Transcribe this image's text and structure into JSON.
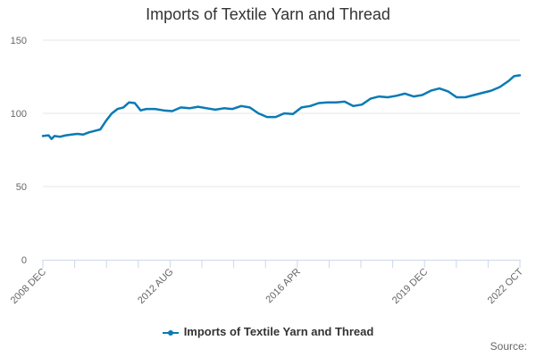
{
  "chart_data": {
    "type": "line",
    "title": "Imports of Textile Yarn and Thread",
    "ylim": [
      0,
      150
    ],
    "yticks": [
      "0",
      "50",
      "100",
      "150"
    ],
    "xtick_labels": [
      "2008 DEC",
      "2012 AUG",
      "2016 APR",
      "2019 DEC",
      "2022 OCT"
    ],
    "x_range": [
      "2008-12",
      "2022-10"
    ],
    "grid": true,
    "legend_position": "bottom",
    "series": [
      {
        "name": "Imports of Textile Yarn and Thread",
        "color": "#0a7ab4",
        "points": [
          [
            "2008-12",
            84.5
          ],
          [
            "2009-02",
            85.0
          ],
          [
            "2009-03",
            82.5
          ],
          [
            "2009-04",
            84.5
          ],
          [
            "2009-06",
            84.0
          ],
          [
            "2009-08",
            85.0
          ],
          [
            "2009-10",
            85.5
          ],
          [
            "2009-12",
            86.0
          ],
          [
            "2010-02",
            85.5
          ],
          [
            "2010-04",
            87.0
          ],
          [
            "2010-06",
            88.0
          ],
          [
            "2010-08",
            89.0
          ],
          [
            "2010-10",
            95.0
          ],
          [
            "2010-12",
            100.0
          ],
          [
            "2011-02",
            103.0
          ],
          [
            "2011-04",
            104.0
          ],
          [
            "2011-06",
            107.5
          ],
          [
            "2011-08",
            107.0
          ],
          [
            "2011-10",
            102.0
          ],
          [
            "2011-12",
            103.0
          ],
          [
            "2012-03",
            103.0
          ],
          [
            "2012-06",
            102.0
          ],
          [
            "2012-09",
            101.5
          ],
          [
            "2012-12",
            104.0
          ],
          [
            "2013-03",
            103.5
          ],
          [
            "2013-06",
            104.5
          ],
          [
            "2013-09",
            103.5
          ],
          [
            "2013-12",
            102.5
          ],
          [
            "2014-03",
            103.5
          ],
          [
            "2014-06",
            103.0
          ],
          [
            "2014-09",
            105.0
          ],
          [
            "2014-12",
            104.0
          ],
          [
            "2015-03",
            100.0
          ],
          [
            "2015-06",
            97.5
          ],
          [
            "2015-09",
            97.5
          ],
          [
            "2015-12",
            100.0
          ],
          [
            "2016-03",
            99.5
          ],
          [
            "2016-06",
            104.0
          ],
          [
            "2016-09",
            105.0
          ],
          [
            "2016-12",
            107.0
          ],
          [
            "2017-03",
            107.5
          ],
          [
            "2017-06",
            107.5
          ],
          [
            "2017-09",
            108.0
          ],
          [
            "2017-12",
            105.0
          ],
          [
            "2018-03",
            106.0
          ],
          [
            "2018-06",
            110.0
          ],
          [
            "2018-09",
            111.5
          ],
          [
            "2018-12",
            111.0
          ],
          [
            "2019-03",
            112.0
          ],
          [
            "2019-06",
            113.5
          ],
          [
            "2019-09",
            111.5
          ],
          [
            "2019-12",
            112.5
          ],
          [
            "2020-03",
            115.5
          ],
          [
            "2020-06",
            117.0
          ],
          [
            "2020-09",
            115.0
          ],
          [
            "2020-12",
            111.0
          ],
          [
            "2021-03",
            111.0
          ],
          [
            "2021-06",
            112.5
          ],
          [
            "2021-09",
            114.0
          ],
          [
            "2021-12",
            115.5
          ],
          [
            "2022-03",
            118.0
          ],
          [
            "2022-06",
            122.0
          ],
          [
            "2022-08",
            125.5
          ],
          [
            "2022-10",
            126.0
          ]
        ]
      }
    ]
  },
  "legend_label": "Imports of Textile Yarn and Thread",
  "source_label": "Source:"
}
